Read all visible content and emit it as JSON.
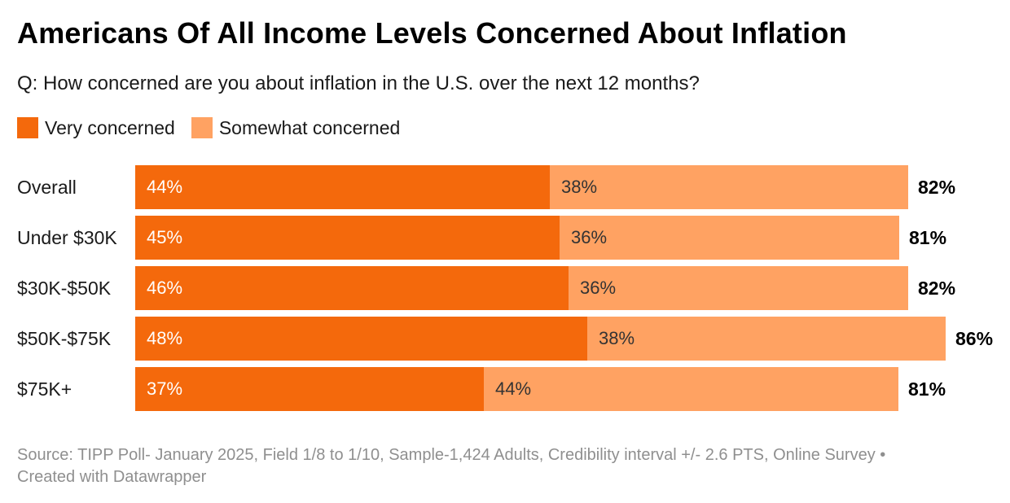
{
  "header": {
    "title": "Americans Of All Income Levels Concerned About Inflation",
    "subtitle": "Q: How concerned are you about inflation in the U.S. over the next 12 months?"
  },
  "legend": {
    "items": [
      {
        "label": "Very concerned",
        "color": "#F4690C"
      },
      {
        "label": "Somewhat concerned",
        "color": "#FFA262"
      }
    ]
  },
  "chart_data": {
    "type": "bar",
    "orientation": "horizontal",
    "stacked": true,
    "title": "Americans Of All Income Levels Concerned About Inflation",
    "question": "Q: How concerned are you about inflation in the U.S. over the next 12 months?",
    "unit": "%",
    "xlim": [
      0,
      100
    ],
    "grid": false,
    "legend_position": "top",
    "series_names": [
      "Very concerned",
      "Somewhat concerned"
    ],
    "colors": {
      "very": "#F4690C",
      "somewhat": "#FFA262"
    },
    "categories": [
      "Overall",
      "Under $30K",
      "$30K-$50K",
      "$50K-$75K",
      "$75K+"
    ],
    "series": [
      {
        "name": "Very concerned",
        "values": [
          44,
          45,
          46,
          48,
          37
        ]
      },
      {
        "name": "Somewhat concerned",
        "values": [
          38,
          36,
          36,
          38,
          44
        ]
      }
    ],
    "totals": [
      82,
      81,
      82,
      86,
      81
    ],
    "rows": [
      {
        "category": "Overall",
        "very": 44,
        "somewhat": 38,
        "total": 82,
        "very_label": "44%",
        "somewhat_label": "38%",
        "total_label": "82%"
      },
      {
        "category": "Under $30K",
        "very": 45,
        "somewhat": 36,
        "total": 81,
        "very_label": "45%",
        "somewhat_label": "36%",
        "total_label": "81%"
      },
      {
        "category": "$30K-$50K",
        "very": 46,
        "somewhat": 36,
        "total": 82,
        "very_label": "46%",
        "somewhat_label": "36%",
        "total_label": "82%"
      },
      {
        "category": "$50K-$75K",
        "very": 48,
        "somewhat": 38,
        "total": 86,
        "very_label": "48%",
        "somewhat_label": "38%",
        "total_label": "86%"
      },
      {
        "category": "$75K+",
        "very": 37,
        "somewhat": 44,
        "total": 81,
        "very_label": "37%",
        "somewhat_label": "44%",
        "total_label": "81%"
      }
    ]
  },
  "footer": {
    "line1": "Source: TIPP Poll- January 2025, Field 1/8 to 1/10, Sample-1,424 Adults, Credibility interval +/- 2.6 PTS, Online Survey •",
    "line2": "Created with Datawrapper"
  }
}
